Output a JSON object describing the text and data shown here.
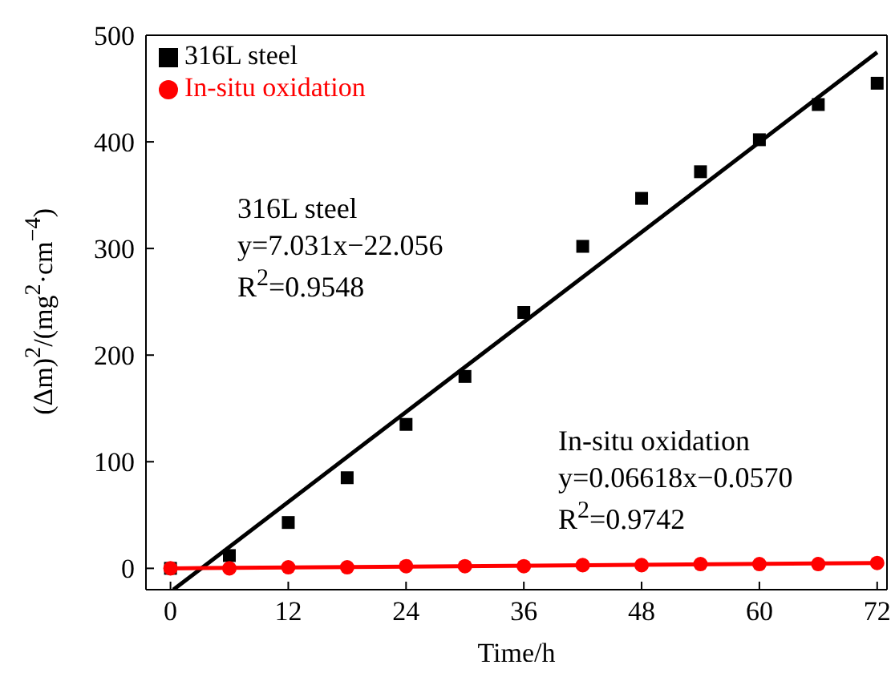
{
  "chart_data": {
    "type": "scatter",
    "xlabel": "Time/h",
    "ylabel": "(Δm)$^{2}$/(mg$^{2}$·cm$^{−4}$)",
    "xlim": [
      -2.5,
      73
    ],
    "ylim": [
      -20,
      500
    ],
    "xticks": [
      0,
      12,
      24,
      36,
      48,
      60,
      72
    ],
    "yticks": [
      0,
      100,
      200,
      300,
      400,
      500
    ],
    "grid": false,
    "legend": "top left",
    "series": [
      {
        "name": "316L steel",
        "color": "#000000",
        "marker": "square",
        "x": [
          0,
          6,
          12,
          18,
          24,
          30,
          36,
          42,
          48,
          54,
          60,
          66,
          72
        ],
        "values": [
          0,
          12,
          43,
          85,
          135,
          180,
          240,
          302,
          347,
          372,
          402,
          435,
          455
        ]
      },
      {
        "name": "In-situ oxidation",
        "color": "#ff0000",
        "marker": "circle",
        "x": [
          0,
          6,
          12,
          18,
          24,
          30,
          36,
          42,
          48,
          54,
          60,
          66,
          72
        ],
        "values": [
          0,
          0,
          1,
          1,
          2,
          2,
          2,
          3,
          3,
          4,
          4,
          4,
          5
        ]
      },
      {
        "type": "line",
        "color": "#000000",
        "marker": "none",
        "x": [
          0.29,
          72
        ],
        "values": [
          -20,
          484
        ]
      },
      {
        "type": "line",
        "color": "#ff0000",
        "marker": "none",
        "x": [
          0,
          72
        ],
        "values": [
          0,
          5
        ]
      }
    ],
    "annotations": [
      "316L steel",
      "y=7.031x−22.056",
      "R$^{2}$=0.9548",
      "In-situ oxidation",
      "y=0.06618x−0.0570",
      "R$^{2}$=0.9742"
    ]
  }
}
